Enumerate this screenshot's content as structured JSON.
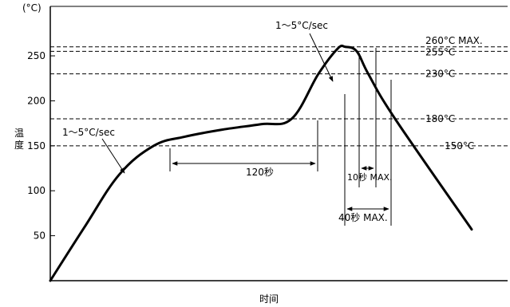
{
  "chart_data": {
    "type": "line",
    "title": "",
    "xlabel": "时间",
    "ylabel": "温度",
    "y_unit": "(°C)",
    "ylim": [
      0,
      305
    ],
    "grid": false,
    "y_ticks": [
      "250",
      "200",
      "150",
      "100",
      "50"
    ],
    "y_tick_values": [
      250,
      200,
      150,
      100,
      50
    ],
    "series": [
      {
        "values": [
          0,
          60,
          118,
          150,
          160,
          168,
          174,
          180,
          230,
          258,
          260,
          255,
          230,
          180,
          57
        ],
        "x_positions": [
          0,
          9,
          18,
          27,
          35,
          45,
          55,
          63,
          70,
          75,
          77,
          80,
          83,
          90,
          110
        ]
      }
    ],
    "reference_lines": [
      {
        "value": 260,
        "label": "260°C MAX."
      },
      {
        "value": 255,
        "label": "255°C"
      },
      {
        "value": 230,
        "label": "230°C"
      },
      {
        "value": 180,
        "label": "180°C"
      },
      {
        "value": 150,
        "label": "150°C"
      }
    ],
    "annotations": [
      {
        "id": "ramp_up_1",
        "text": "1～5°C/sec"
      },
      {
        "id": "ramp_up_2",
        "text": "1～5°C/sec"
      },
      {
        "id": "soak_time",
        "text": "120秒"
      },
      {
        "id": "peak_time",
        "text": "10秒 MAX."
      },
      {
        "id": "reflow_time",
        "text": "40秒 MAX."
      }
    ]
  }
}
